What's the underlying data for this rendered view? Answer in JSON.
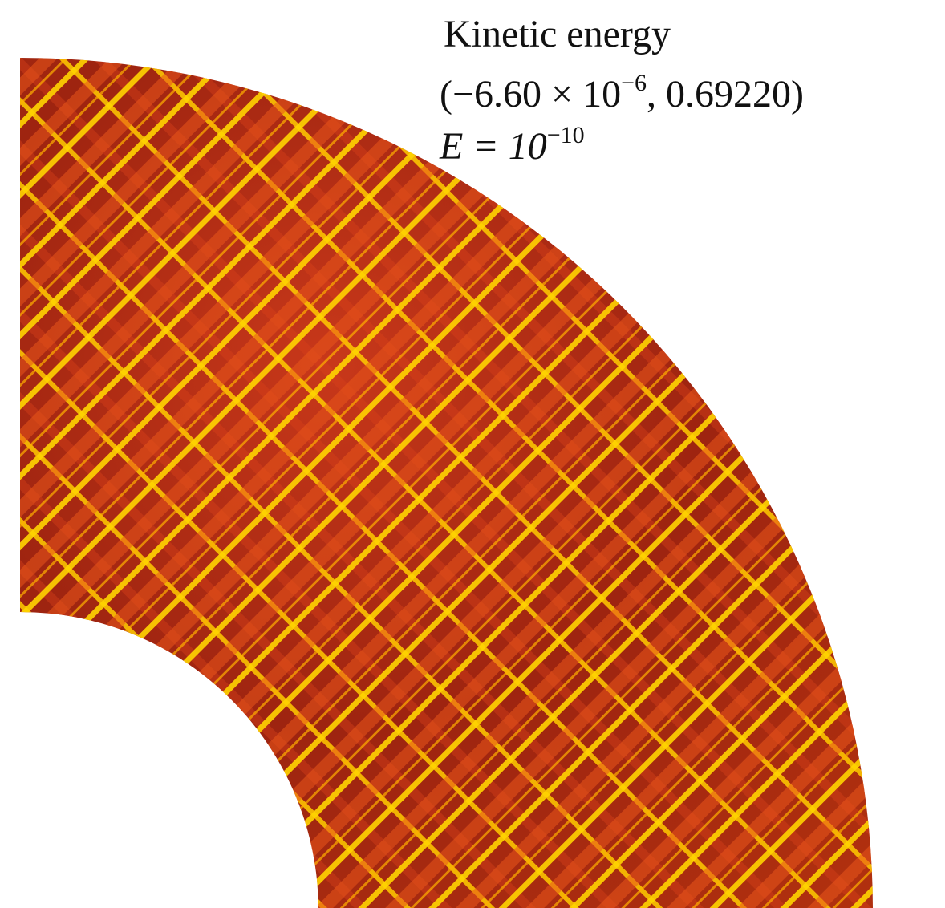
{
  "annotation": {
    "title": "Kinetic energy",
    "range": [
      "(−6.60 × 10",
      "−6",
      ",  0.69220)"
    ],
    "parameter": [
      "E = 10",
      "−10"
    ]
  }
}
